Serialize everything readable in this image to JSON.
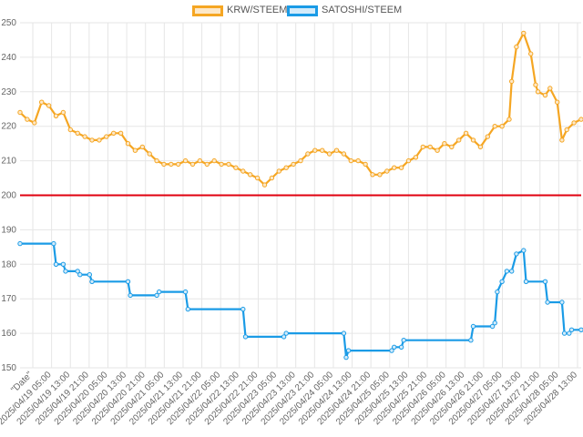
{
  "legend": {
    "series1_label": "KRW/STEEM",
    "series2_label": "SATOSHI/STEEM"
  },
  "colors": {
    "krw": "#f5a623",
    "satoshi": "#1a9be6",
    "krw_fill": "#fde8c8",
    "satoshi_fill": "#d3ebfa",
    "reference_line": "#e0000f",
    "grid": "#e6e6e6"
  },
  "chart_data": {
    "type": "line",
    "grid": true,
    "legend_position": "top-center",
    "ylim": [
      150,
      250
    ],
    "yticks": [
      150,
      160,
      170,
      180,
      190,
      200,
      210,
      220,
      230,
      240,
      250
    ],
    "xlim": [
      "2025/04/19 01:00",
      "2025/04/28 19:00"
    ],
    "x_tick_labels": [
      "\"Date\"",
      "2025/04/19 05:00",
      "2025/04/19 13:00",
      "2025/04/19 21:00",
      "2025/04/20 05:00",
      "2025/04/20 13:00",
      "2025/04/20 21:00",
      "2025/04/21 05:00",
      "2025/04/21 13:00",
      "2025/04/21 21:00",
      "2025/04/22 05:00",
      "2025/04/22 13:00",
      "2025/04/22 21:00",
      "2025/04/23 05:00",
      "2025/04/23 13:00",
      "2025/04/23 21:00",
      "2025/04/24 05:00",
      "2025/04/24 13:00",
      "2025/04/24 21:00",
      "2025/04/25 05:00",
      "2025/04/25 13:00",
      "2025/04/25 21:00",
      "2025/04/26 05:00",
      "2025/04/26 13:00",
      "2025/04/26 21:00",
      "2025/04/27 05:00",
      "2025/04/27 13:00",
      "2025/04/27 21:00",
      "2025/04/28 05:00",
      "2025/04/28 13:00"
    ],
    "reference_line": {
      "y": 200
    },
    "series": [
      {
        "name": "KRW/STEEM",
        "points": [
          [
            "2025/04/19 01:00",
            224
          ],
          [
            "2025/04/19 04:00",
            222
          ],
          [
            "2025/04/19 07:00",
            221
          ],
          [
            "2025/04/19 10:00",
            227
          ],
          [
            "2025/04/19 13:00",
            226
          ],
          [
            "2025/04/19 16:00",
            223
          ],
          [
            "2025/04/19 19:00",
            224
          ],
          [
            "2025/04/19 22:00",
            219
          ],
          [
            "2025/04/20 01:00",
            218
          ],
          [
            "2025/04/20 04:00",
            217
          ],
          [
            "2025/04/20 07:00",
            216
          ],
          [
            "2025/04/20 10:00",
            216
          ],
          [
            "2025/04/20 13:00",
            217
          ],
          [
            "2025/04/20 16:00",
            218
          ],
          [
            "2025/04/20 19:00",
            218
          ],
          [
            "2025/04/20 22:00",
            215
          ],
          [
            "2025/04/21 01:00",
            213
          ],
          [
            "2025/04/21 04:00",
            214
          ],
          [
            "2025/04/21 07:00",
            212
          ],
          [
            "2025/04/21 10:00",
            210
          ],
          [
            "2025/04/21 13:00",
            209
          ],
          [
            "2025/04/21 16:00",
            209
          ],
          [
            "2025/04/21 19:00",
            209
          ],
          [
            "2025/04/21 22:00",
            210
          ],
          [
            "2025/04/22 01:00",
            209
          ],
          [
            "2025/04/22 04:00",
            210
          ],
          [
            "2025/04/22 07:00",
            209
          ],
          [
            "2025/04/22 10:00",
            210
          ],
          [
            "2025/04/22 13:00",
            209
          ],
          [
            "2025/04/22 16:00",
            209
          ],
          [
            "2025/04/22 19:00",
            208
          ],
          [
            "2025/04/22 22:00",
            207
          ],
          [
            "2025/04/23 01:00",
            206
          ],
          [
            "2025/04/23 04:00",
            205
          ],
          [
            "2025/04/23 07:00",
            203
          ],
          [
            "2025/04/23 10:00",
            205
          ],
          [
            "2025/04/23 13:00",
            207
          ],
          [
            "2025/04/23 16:00",
            208
          ],
          [
            "2025/04/23 19:00",
            209
          ],
          [
            "2025/04/23 22:00",
            210
          ],
          [
            "2025/04/24 01:00",
            212
          ],
          [
            "2025/04/24 04:00",
            213
          ],
          [
            "2025/04/24 07:00",
            213
          ],
          [
            "2025/04/24 10:00",
            212
          ],
          [
            "2025/04/24 13:00",
            213
          ],
          [
            "2025/04/24 16:00",
            212
          ],
          [
            "2025/04/24 19:00",
            210
          ],
          [
            "2025/04/24 22:00",
            210
          ],
          [
            "2025/04/25 01:00",
            209
          ],
          [
            "2025/04/25 04:00",
            206
          ],
          [
            "2025/04/25 07:00",
            206
          ],
          [
            "2025/04/25 10:00",
            207
          ],
          [
            "2025/04/25 13:00",
            208
          ],
          [
            "2025/04/25 16:00",
            208
          ],
          [
            "2025/04/25 19:00",
            210
          ],
          [
            "2025/04/25 22:00",
            211
          ],
          [
            "2025/04/26 01:00",
            214
          ],
          [
            "2025/04/26 04:00",
            214
          ],
          [
            "2025/04/26 07:00",
            213
          ],
          [
            "2025/04/26 10:00",
            215
          ],
          [
            "2025/04/26 13:00",
            214
          ],
          [
            "2025/04/26 16:00",
            216
          ],
          [
            "2025/04/26 19:00",
            218
          ],
          [
            "2025/04/26 22:00",
            216
          ],
          [
            "2025/04/27 01:00",
            214
          ],
          [
            "2025/04/27 04:00",
            217
          ],
          [
            "2025/04/27 07:00",
            220
          ],
          [
            "2025/04/27 10:00",
            220
          ],
          [
            "2025/04/27 13:00",
            222
          ],
          [
            "2025/04/27 14:00",
            233
          ],
          [
            "2025/04/27 16:00",
            243
          ],
          [
            "2025/04/27 19:00",
            247
          ],
          [
            "2025/04/27 22:00",
            241
          ],
          [
            "2025/04/28 00:00",
            232
          ],
          [
            "2025/04/28 01:00",
            230
          ],
          [
            "2025/04/28 04:00",
            229
          ],
          [
            "2025/04/28 06:00",
            231
          ],
          [
            "2025/04/28 09:00",
            227
          ],
          [
            "2025/04/28 11:00",
            216
          ],
          [
            "2025/04/28 13:00",
            219
          ],
          [
            "2025/04/28 16:00",
            221
          ],
          [
            "2025/04/28 19:00",
            222
          ]
        ]
      },
      {
        "name": "SATOSHI/STEEM",
        "points": [
          [
            "2025/04/19 01:00",
            186
          ],
          [
            "2025/04/19 15:00",
            186
          ],
          [
            "2025/04/19 16:00",
            180
          ],
          [
            "2025/04/19 19:00",
            180
          ],
          [
            "2025/04/19 20:00",
            178
          ],
          [
            "2025/04/20 01:00",
            178
          ],
          [
            "2025/04/20 02:00",
            177
          ],
          [
            "2025/04/20 06:00",
            177
          ],
          [
            "2025/04/20 07:00",
            175
          ],
          [
            "2025/04/20 22:00",
            175
          ],
          [
            "2025/04/20 23:00",
            171
          ],
          [
            "2025/04/21 10:00",
            171
          ],
          [
            "2025/04/21 11:00",
            172
          ],
          [
            "2025/04/21 22:00",
            172
          ],
          [
            "2025/04/21 23:00",
            167
          ],
          [
            "2025/04/22 22:00",
            167
          ],
          [
            "2025/04/22 23:00",
            159
          ],
          [
            "2025/04/23 15:00",
            159
          ],
          [
            "2025/04/23 16:00",
            160
          ],
          [
            "2025/04/24 16:00",
            160
          ],
          [
            "2025/04/24 17:00",
            153
          ],
          [
            "2025/04/24 18:00",
            155
          ],
          [
            "2025/04/25 12:00",
            155
          ],
          [
            "2025/04/25 13:00",
            156
          ],
          [
            "2025/04/25 16:00",
            156
          ],
          [
            "2025/04/25 17:00",
            158
          ],
          [
            "2025/04/26 21:00",
            158
          ],
          [
            "2025/04/26 22:00",
            162
          ],
          [
            "2025/04/27 06:00",
            162
          ],
          [
            "2025/04/27 07:00",
            163
          ],
          [
            "2025/04/27 08:00",
            172
          ],
          [
            "2025/04/27 10:00",
            175
          ],
          [
            "2025/04/27 12:00",
            178
          ],
          [
            "2025/04/27 14:00",
            178
          ],
          [
            "2025/04/27 16:00",
            183
          ],
          [
            "2025/04/27 19:00",
            184
          ],
          [
            "2025/04/27 20:00",
            175
          ],
          [
            "2025/04/28 04:00",
            175
          ],
          [
            "2025/04/28 05:00",
            169
          ],
          [
            "2025/04/28 11:00",
            169
          ],
          [
            "2025/04/28 12:00",
            160
          ],
          [
            "2025/04/28 14:00",
            160
          ],
          [
            "2025/04/28 15:00",
            161
          ],
          [
            "2025/04/28 19:00",
            161
          ]
        ]
      }
    ]
  }
}
